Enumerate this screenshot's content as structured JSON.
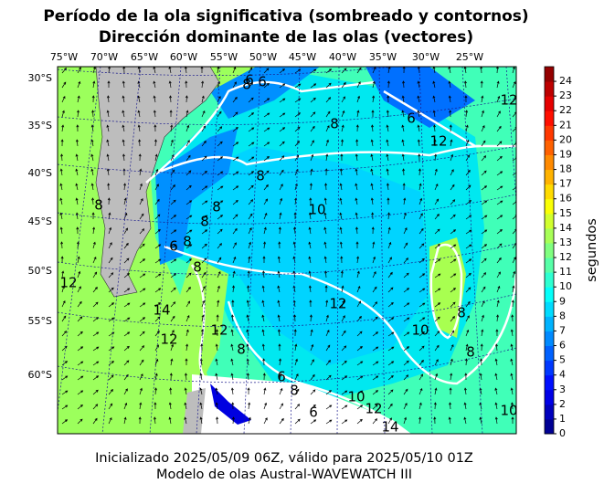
{
  "map": {
    "title": [
      "Período de la ola significativa (sombreado y contornos)",
      "Dirección dominante de las olas (vectores)"
    ],
    "lon_labels": [
      "75°W",
      "70°W",
      "65°W",
      "60°W",
      "55°W",
      "50°W",
      "45°W",
      "40°W",
      "35°W",
      "30°W",
      "25°W"
    ],
    "lat_labels": [
      "30°S",
      "35°S",
      "40°S",
      "45°S",
      "50°S",
      "55°S",
      "60°S"
    ],
    "contour_labels": [
      "8",
      "6",
      "6",
      "8",
      "6",
      "12",
      "8",
      "10",
      "8",
      "8",
      "8",
      "6",
      "8",
      "8",
      "12",
      "12",
      "14",
      "12",
      "12",
      "10",
      "8",
      "6",
      "8",
      "6",
      "10",
      "12",
      "14",
      "8",
      "8",
      "10",
      "12"
    ],
    "colorbar": {
      "label": "segundos",
      "clim": [
        0,
        25
      ],
      "ticks": [
        0,
        1,
        2,
        3,
        4,
        5,
        6,
        7,
        8,
        9,
        10,
        11,
        12,
        13,
        14,
        15,
        16,
        17,
        18,
        19,
        20,
        21,
        22,
        23,
        24
      ]
    },
    "footer": [
      "Inicializado 2025/05/09 06Z, válido para 2025/05/10 01Z",
      "Modelo de olas Austral-WAVEWATCH III"
    ]
  }
}
